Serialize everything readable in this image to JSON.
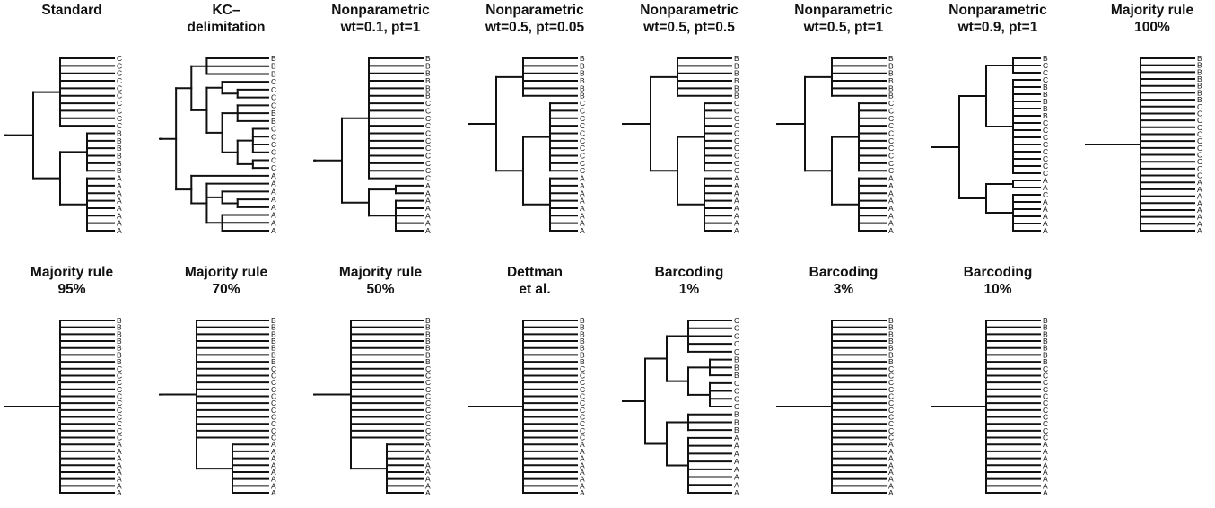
{
  "panels": [
    {
      "id": "standard",
      "title": "Standard",
      "tips": [
        "C",
        "C",
        "C",
        "C",
        "C",
        "C",
        "C",
        "C",
        "C",
        "C",
        "B",
        "B",
        "B",
        "B",
        "B",
        "B",
        "A",
        "A",
        "A",
        "A",
        "A",
        "A",
        "A",
        "A"
      ],
      "tree": [
        [
          [
            0,
            1,
            2,
            3,
            4,
            5,
            6,
            7,
            8,
            9
          ],
          [
            [
              10,
              11,
              12,
              13,
              14,
              15
            ],
            [
              16,
              17,
              18,
              19,
              20,
              21,
              22,
              23
            ]
          ]
        ]
      ]
    },
    {
      "id": "kc-delimitation",
      "title": "KC–\ndelimitation",
      "tips": [
        "B",
        "B",
        "B",
        "C",
        "C",
        "C",
        "C",
        "B",
        "B",
        "C",
        "C",
        "C",
        "C",
        "C",
        "C",
        "A",
        "A",
        "A",
        "A",
        "A",
        "A",
        "A",
        "A"
      ],
      "tree": [
        [
          [
            [
              0,
              1,
              2
            ],
            [
              [
                3,
                [
                  4,
                  5
                ]
              ],
              [
                [
                  6,
                  7,
                  8
                ],
                [
                  [
                    9,
                    10,
                    11,
                    12
                  ],
                  [
                    13,
                    14
                  ]
                ]
              ]
            ]
          ],
          [
            15,
            [
              16,
              [
                17,
                [
                  18,
                  19
                ]
              ],
              [
                20,
                21,
                22
              ]
            ]
          ]
        ]
      ]
    },
    {
      "id": "np-01-1",
      "title": "Nonparametric\nwt=0.1, pt=1",
      "tips": [
        "B",
        "B",
        "B",
        "B",
        "B",
        "B",
        "C",
        "C",
        "C",
        "C",
        "C",
        "C",
        "C",
        "C",
        "C",
        "C",
        "C",
        "A",
        "A",
        "A",
        "A",
        "A",
        "A",
        "A"
      ],
      "tree": [
        [
          [
            0,
            1,
            2,
            3,
            4,
            5,
            6,
            7,
            8,
            9,
            10,
            11,
            12,
            13,
            14,
            15,
            16
          ],
          [
            [
              17,
              18
            ],
            [
              19,
              20,
              21,
              22,
              23
            ]
          ]
        ]
      ]
    },
    {
      "id": "np-05-005",
      "title": "Nonparametric\nwt=0.5, pt=0.05",
      "tips": [
        "B",
        "B",
        "B",
        "B",
        "B",
        "B",
        "C",
        "C",
        "C",
        "C",
        "C",
        "C",
        "C",
        "C",
        "C",
        "C",
        "A",
        "A",
        "A",
        "A",
        "A",
        "A",
        "A",
        "A"
      ],
      "tree": [
        [
          [
            0,
            1,
            2,
            3,
            4,
            5
          ],
          [
            [
              6,
              7,
              8,
              9,
              10,
              11,
              12,
              13,
              14,
              15
            ],
            [
              16,
              17,
              18,
              19,
              20,
              21,
              22,
              23
            ]
          ]
        ]
      ]
    },
    {
      "id": "np-05-05",
      "title": "Nonparametric\nwt=0.5, pt=0.5",
      "tips": [
        "B",
        "B",
        "B",
        "B",
        "B",
        "B",
        "C",
        "C",
        "C",
        "C",
        "C",
        "C",
        "C",
        "C",
        "C",
        "C",
        "A",
        "A",
        "A",
        "A",
        "A",
        "A",
        "A",
        "A"
      ],
      "tree": [
        [
          [
            0,
            1,
            2,
            3,
            4,
            5
          ],
          [
            [
              6,
              7,
              8,
              9,
              10,
              11,
              12,
              13,
              14,
              15
            ],
            [
              16,
              17,
              18,
              19,
              20,
              21,
              22,
              23
            ]
          ]
        ]
      ]
    },
    {
      "id": "np-05-1",
      "title": "Nonparametric\nwt=0.5, pt=1",
      "tips": [
        "B",
        "B",
        "B",
        "B",
        "B",
        "B",
        "C",
        "C",
        "C",
        "C",
        "C",
        "C",
        "C",
        "C",
        "C",
        "C",
        "A",
        "A",
        "A",
        "A",
        "A",
        "A",
        "A",
        "A"
      ],
      "tree": [
        [
          [
            0,
            1,
            2,
            3,
            4,
            5
          ],
          [
            [
              6,
              7,
              8,
              9,
              10,
              11,
              12,
              13,
              14,
              15
            ],
            [
              16,
              17,
              18,
              19,
              20,
              21,
              22,
              23
            ]
          ]
        ]
      ]
    },
    {
      "id": "np-09-1",
      "title": "Nonparametric\nwt=0.9, pt=1",
      "tips": [
        "B",
        "C",
        "C",
        "C",
        "B",
        "B",
        "B",
        "B",
        "B",
        "C",
        "C",
        "C",
        "C",
        "C",
        "C",
        "C",
        "C",
        "A",
        "A",
        "C",
        "A",
        "A",
        "A",
        "A",
        "A"
      ],
      "tree": [
        [
          [
            [
              0,
              1,
              2
            ],
            [
              3,
              4,
              5,
              6,
              7,
              8,
              9,
              10,
              11,
              12,
              13,
              14,
              15,
              16
            ]
          ],
          [
            [
              17,
              18
            ],
            [
              19,
              20,
              21,
              22,
              23,
              24
            ]
          ]
        ]
      ]
    },
    {
      "id": "mr-100",
      "title": "Majority rule\n100%",
      "tips": [
        "B",
        "B",
        "B",
        "B",
        "B",
        "B",
        "B",
        "C",
        "C",
        "C",
        "C",
        "C",
        "C",
        "C",
        "C",
        "C",
        "C",
        "C",
        "A",
        "A",
        "A",
        "A",
        "A",
        "A",
        "A",
        "A"
      ],
      "tree": [
        [
          0,
          1,
          2,
          3,
          4,
          5,
          6,
          7,
          8,
          9,
          10,
          11,
          12,
          13,
          14,
          15,
          16,
          17,
          18,
          19,
          20,
          21,
          22,
          23,
          24,
          25
        ]
      ]
    },
    {
      "id": "mr-95",
      "title": "Majority rule\n95%",
      "tips": [
        "B",
        "B",
        "B",
        "B",
        "B",
        "B",
        "B",
        "C",
        "C",
        "C",
        "C",
        "C",
        "C",
        "C",
        "C",
        "C",
        "C",
        "C",
        "A",
        "A",
        "A",
        "A",
        "A",
        "A",
        "A",
        "A"
      ],
      "tree": [
        [
          0,
          1,
          2,
          3,
          4,
          5,
          6,
          7,
          8,
          9,
          10,
          11,
          12,
          13,
          14,
          15,
          16,
          17,
          18,
          19,
          20,
          21,
          22,
          23,
          24,
          25
        ]
      ]
    },
    {
      "id": "mr-70",
      "title": "Majority rule\n70%",
      "tips": [
        "B",
        "B",
        "B",
        "B",
        "B",
        "B",
        "B",
        "C",
        "C",
        "C",
        "C",
        "C",
        "C",
        "C",
        "C",
        "C",
        "C",
        "C",
        "A",
        "A",
        "A",
        "A",
        "A",
        "A",
        "A",
        "A"
      ],
      "tree": [
        [
          0,
          1,
          2,
          3,
          4,
          5,
          6,
          7,
          8,
          9,
          10,
          11,
          12,
          13,
          14,
          15,
          16,
          17,
          [
            18,
            19,
            20,
            21,
            22,
            23,
            24,
            25
          ]
        ]
      ]
    },
    {
      "id": "mr-50",
      "title": "Majority rule\n50%",
      "tips": [
        "B",
        "B",
        "B",
        "B",
        "B",
        "B",
        "B",
        "C",
        "C",
        "C",
        "C",
        "C",
        "C",
        "C",
        "C",
        "C",
        "C",
        "C",
        "A",
        "A",
        "A",
        "A",
        "A",
        "A",
        "A",
        "A"
      ],
      "tree": [
        [
          0,
          1,
          2,
          3,
          4,
          5,
          6,
          7,
          8,
          9,
          10,
          11,
          12,
          13,
          14,
          15,
          16,
          17,
          [
            18,
            19,
            20,
            21,
            22,
            23,
            24,
            25
          ]
        ]
      ]
    },
    {
      "id": "dettman",
      "title": "Dettman\net al.",
      "tips": [
        "B",
        "B",
        "B",
        "B",
        "B",
        "B",
        "B",
        "C",
        "C",
        "C",
        "C",
        "C",
        "C",
        "C",
        "C",
        "C",
        "C",
        "C",
        "A",
        "A",
        "A",
        "A",
        "A",
        "A",
        "A",
        "A"
      ],
      "tree": [
        [
          0,
          1,
          2,
          3,
          4,
          5,
          6,
          7,
          8,
          9,
          10,
          11,
          12,
          13,
          14,
          15,
          16,
          17,
          18,
          19,
          20,
          21,
          22,
          23,
          24,
          25
        ]
      ]
    },
    {
      "id": "barcoding-1",
      "title": "Barcoding\n1%",
      "tips": [
        "C",
        "C",
        "C",
        "C",
        "C",
        "B",
        "B",
        "B",
        "C",
        "C",
        "C",
        "C",
        "B",
        "B",
        "B",
        "A",
        "A",
        "A",
        "A",
        "A",
        "A",
        "A",
        "A"
      ],
      "tree": [
        [
          [
            [
              0,
              1,
              2,
              3,
              4
            ],
            [
              [
                5,
                6,
                7
              ],
              [
                8,
                9,
                10,
                11
              ]
            ]
          ],
          [
            [
              12,
              13,
              14
            ],
            [
              15,
              16,
              17,
              18,
              19,
              20,
              21,
              22
            ]
          ]
        ]
      ]
    },
    {
      "id": "barcoding-3",
      "title": "Barcoding\n3%",
      "tips": [
        "B",
        "B",
        "B",
        "B",
        "B",
        "B",
        "B",
        "C",
        "C",
        "C",
        "C",
        "C",
        "C",
        "C",
        "C",
        "C",
        "C",
        "C",
        "A",
        "A",
        "A",
        "A",
        "A",
        "A",
        "A",
        "A"
      ],
      "tree": [
        [
          0,
          1,
          2,
          3,
          4,
          5,
          6,
          7,
          8,
          9,
          10,
          11,
          12,
          13,
          14,
          15,
          16,
          17,
          18,
          19,
          20,
          21,
          22,
          23,
          24,
          25
        ]
      ]
    },
    {
      "id": "barcoding-10",
      "title": "Barcoding\n10%",
      "tips": [
        "B",
        "B",
        "B",
        "B",
        "B",
        "B",
        "B",
        "C",
        "C",
        "C",
        "C",
        "C",
        "C",
        "C",
        "C",
        "C",
        "C",
        "C",
        "A",
        "A",
        "A",
        "A",
        "A",
        "A",
        "A",
        "A"
      ],
      "tree": [
        [
          0,
          1,
          2,
          3,
          4,
          5,
          6,
          7,
          8,
          9,
          10,
          11,
          12,
          13,
          14,
          15,
          16,
          17,
          18,
          19,
          20,
          21,
          22,
          23,
          24,
          25
        ]
      ]
    }
  ]
}
